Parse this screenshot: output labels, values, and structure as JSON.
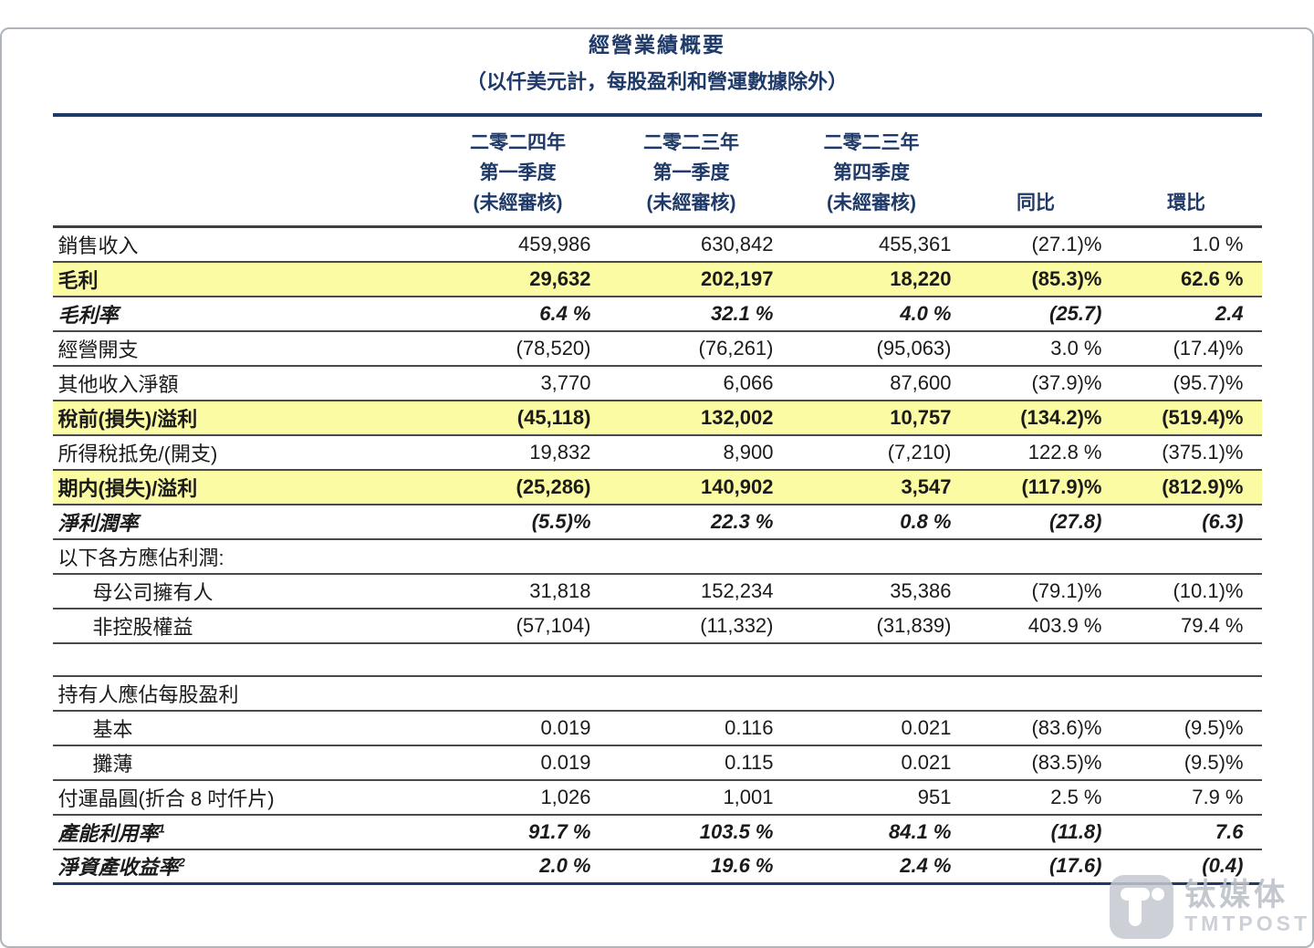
{
  "page": {
    "title": "經營業績概要",
    "subtitle": "（以仟美元計，每股盈利和營運數據除外）"
  },
  "table": {
    "column_headers": [
      {
        "lines": [
          "二零二四年",
          "第一季度",
          "(未經審核)"
        ]
      },
      {
        "lines": [
          "二零二三年",
          "第一季度",
          "(未經審核)"
        ]
      },
      {
        "lines": [
          "二零二三年",
          "第四季度",
          "(未經審核)"
        ]
      },
      {
        "lines": [
          "同比"
        ]
      },
      {
        "lines": [
          "環比"
        ]
      }
    ],
    "rows": [
      {
        "label": "銷售收入",
        "style": "normal",
        "values": [
          "459,986",
          "630,842",
          "455,361",
          "(27.1)%",
          "1.0 %"
        ]
      },
      {
        "label": "毛利",
        "style": "highlight",
        "values": [
          "29,632",
          "202,197",
          "18,220",
          "(85.3)%",
          "62.6 %"
        ]
      },
      {
        "label": "毛利率",
        "style": "bolditalic",
        "values": [
          "6.4 %",
          "32.1 %",
          "4.0 %",
          "(25.7)",
          "2.4"
        ]
      },
      {
        "label": "經營開支",
        "style": "normal",
        "values": [
          "(78,520)",
          "(76,261)",
          "(95,063)",
          "3.0 %",
          "(17.4)%"
        ]
      },
      {
        "label": "其他收入淨額",
        "style": "normal",
        "values": [
          "3,770",
          "6,066",
          "87,600",
          "(37.9)%",
          "(95.7)%"
        ]
      },
      {
        "label": "稅前(損失)/溢利",
        "style": "highlight",
        "values": [
          "(45,118)",
          "132,002",
          "10,757",
          "(134.2)%",
          "(519.4)%"
        ]
      },
      {
        "label": "所得稅抵免/(開支)",
        "style": "normal",
        "values": [
          "19,832",
          "8,900",
          "(7,210)",
          "122.8 %",
          "(375.1)%"
        ]
      },
      {
        "label": "期内(損失)/溢利",
        "style": "highlight",
        "values": [
          "(25,286)",
          "140,902",
          "3,547",
          "(117.9)%",
          "(812.9)%"
        ]
      },
      {
        "label": "淨利潤率",
        "style": "bolditalic",
        "values": [
          "(5.5)%",
          "22.3 %",
          "0.8 %",
          "(27.8)",
          "(6.3)"
        ]
      },
      {
        "label": "以下各方應佔利潤:",
        "style": "section",
        "values": [
          "",
          "",
          "",
          "",
          ""
        ]
      },
      {
        "label": "母公司擁有人",
        "style": "indent",
        "values": [
          "31,818",
          "152,234",
          "35,386",
          "(79.1)%",
          "(10.1)%"
        ]
      },
      {
        "label": "非控股權益",
        "style": "indent",
        "values": [
          "(57,104)",
          "(11,332)",
          "(31,839)",
          "403.9 %",
          "79.4 %"
        ]
      },
      {
        "label": "",
        "style": "spacer",
        "values": [
          "",
          "",
          "",
          "",
          ""
        ]
      },
      {
        "label": "持有人應佔每股盈利",
        "style": "section",
        "values": [
          "",
          "",
          "",
          "",
          ""
        ]
      },
      {
        "label": "基本",
        "style": "indent",
        "values": [
          "0.019",
          "0.116",
          "0.021",
          "(83.6)%",
          "(9.5)%"
        ]
      },
      {
        "label": "攤薄",
        "style": "indent",
        "values": [
          "0.019",
          "0.115",
          "0.021",
          "(83.5)%",
          "(9.5)%"
        ]
      },
      {
        "label": "付運晶圓(折合 8 吋仟片)",
        "style": "normal",
        "values": [
          "1,026",
          "1,001",
          "951",
          "2.5 %",
          "7.9 %"
        ]
      },
      {
        "label": "產能利用率",
        "sup": "1",
        "style": "bolditalic",
        "values": [
          "91.7 %",
          "103.5 %",
          "84.1 %",
          "(11.8)",
          "7.6"
        ]
      },
      {
        "label": "淨資產收益率",
        "sup": "2",
        "style": "bolditalic",
        "values": [
          "2.0 %",
          "19.6 %",
          "2.4 %",
          "(17.6)",
          "(0.4)"
        ]
      }
    ]
  },
  "watermark": {
    "brand_cn": "钛媒体",
    "brand_en": "TMTPOST",
    "icon": "tmtpost-t-logo"
  },
  "colors": {
    "heading_navy": "#1f3a68",
    "highlight_yellow": "#fbfba3",
    "row_border_gray": "#4a4a4a",
    "body_text": "#1b1b1b",
    "watermark_gray": "#c4c8cf"
  }
}
